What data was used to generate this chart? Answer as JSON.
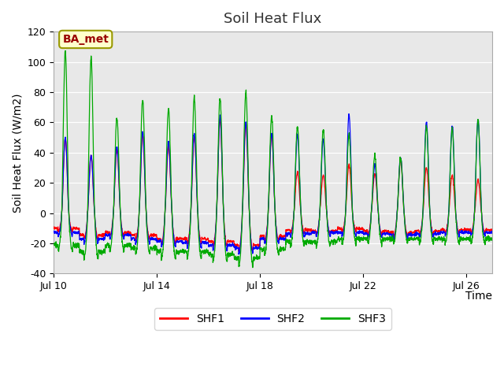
{
  "title": "Soil Heat Flux",
  "xlabel": "Time",
  "ylabel": "Soil Heat Flux (W/m2)",
  "ylim": [
    -40,
    120
  ],
  "xtick_labels": [
    "Jul 10",
    "Jul 14",
    "Jul 18",
    "Jul 22",
    "Jul 26"
  ],
  "ytick_positions": [
    -40,
    -20,
    0,
    20,
    40,
    60,
    80,
    100,
    120
  ],
  "legend_labels": [
    "SHF1",
    "SHF2",
    "SHF3"
  ],
  "legend_colors": [
    "#ff0000",
    "#0000ff",
    "#00aa00"
  ],
  "annotation_text": "BA_met",
  "annotation_color": "#990000",
  "annotation_bg": "#ffffcc",
  "annotation_border": "#999900",
  "background_color": "#e8e8e8",
  "outer_bg_color": "#ffffff",
  "title_fontsize": 13,
  "axis_label_fontsize": 10,
  "tick_fontsize": 9,
  "shf1_day_peaks": [
    50,
    38,
    42,
    52,
    44,
    50,
    62,
    59,
    52,
    27,
    25,
    32,
    26,
    35,
    30,
    25,
    22
  ],
  "shf2_day_peaks": [
    50,
    38,
    44,
    54,
    47,
    52,
    64,
    60,
    53,
    52,
    49,
    65,
    32,
    37,
    60,
    58,
    62
  ],
  "shf3_day_peaks": [
    107,
    103,
    63,
    75,
    69,
    76,
    76,
    80,
    64,
    57,
    55,
    52,
    38,
    36,
    57,
    56,
    62
  ],
  "shf1_day_troughs": [
    -12,
    -17,
    -15,
    -17,
    -20,
    -20,
    -22,
    -25,
    -18,
    -13,
    -14,
    -12,
    -14,
    -15,
    -14,
    -13
  ],
  "shf2_day_troughs": [
    -15,
    -20,
    -17,
    -20,
    -22,
    -23,
    -25,
    -27,
    -20,
    -16,
    -15,
    -15,
    -16,
    -17,
    -16,
    -15
  ],
  "shf3_day_troughs": [
    -25,
    -30,
    -25,
    -27,
    -30,
    -30,
    -32,
    -35,
    -28,
    -22,
    -22,
    -20,
    -20,
    -20,
    -20,
    -20
  ],
  "start_day": 1,
  "n_days": 17
}
